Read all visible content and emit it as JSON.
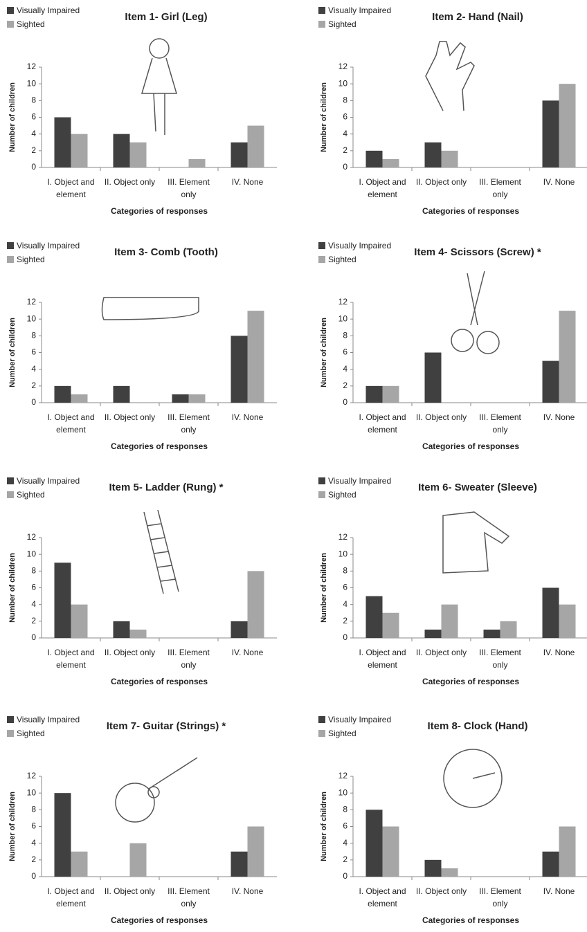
{
  "chart_data": [
    {
      "type": "bar",
      "title": "Item 1- Girl (Leg)",
      "xlabel": "Categories of responses",
      "ylabel": "Number of children",
      "categories": [
        "I. Object and element",
        "II. Object only",
        "III. Element only",
        "IV. None"
      ],
      "series": [
        {
          "name": "Visually Impaired",
          "color": "#404040",
          "values": [
            6,
            4,
            0,
            3
          ]
        },
        {
          "name": "Sighted",
          "color": "#a6a6a6",
          "values": [
            4,
            3,
            1,
            5
          ]
        }
      ],
      "ylim": [
        0,
        12
      ],
      "yticks": [
        0,
        2,
        4,
        6,
        8,
        10,
        12
      ]
    },
    {
      "type": "bar",
      "title": "Item 2- Hand (Nail)",
      "xlabel": "Categories of responses",
      "ylabel": "Number of children",
      "categories": [
        "I. Object and element",
        "II. Object only",
        "III. Element only",
        "IV. None"
      ],
      "series": [
        {
          "name": "Visually Impaired",
          "color": "#404040",
          "values": [
            2,
            3,
            0,
            8
          ]
        },
        {
          "name": "Sighted",
          "color": "#a6a6a6",
          "values": [
            1,
            2,
            0,
            10
          ]
        }
      ],
      "ylim": [
        0,
        12
      ],
      "yticks": [
        0,
        2,
        4,
        6,
        8,
        10,
        12
      ]
    },
    {
      "type": "bar",
      "title": "Item 3- Comb (Tooth)",
      "xlabel": "Categories of responses",
      "ylabel": "Number of children",
      "categories": [
        "I. Object and element",
        "II. Object only",
        "III. Element only",
        "IV. None"
      ],
      "series": [
        {
          "name": "Visually Impaired",
          "color": "#404040",
          "values": [
            2,
            2,
            1,
            8
          ]
        },
        {
          "name": "Sighted",
          "color": "#a6a6a6",
          "values": [
            1,
            0,
            1,
            11
          ]
        }
      ],
      "ylim": [
        0,
        12
      ],
      "yticks": [
        0,
        2,
        4,
        6,
        8,
        10,
        12
      ]
    },
    {
      "type": "bar",
      "title": "Item 4- Scissors (Screw) *",
      "xlabel": "Categories of responses",
      "ylabel": "Number of children",
      "categories": [
        "I. Object and element",
        "II. Object only",
        "III. Element only",
        "IV. None"
      ],
      "series": [
        {
          "name": "Visually Impaired",
          "color": "#404040",
          "values": [
            2,
            6,
            0,
            5
          ]
        },
        {
          "name": "Sighted",
          "color": "#a6a6a6",
          "values": [
            2,
            0,
            0,
            11
          ]
        }
      ],
      "ylim": [
        0,
        12
      ],
      "yticks": [
        0,
        2,
        4,
        6,
        8,
        10,
        12
      ]
    },
    {
      "type": "bar",
      "title": "Item 5- Ladder (Rung) *",
      "xlabel": "Categories of responses",
      "ylabel": "Number of children",
      "categories": [
        "I. Object and element",
        "II. Object only",
        "III. Element only",
        "IV. None"
      ],
      "series": [
        {
          "name": "Visually Impaired",
          "color": "#404040",
          "values": [
            9,
            2,
            0,
            2
          ]
        },
        {
          "name": "Sighted",
          "color": "#a6a6a6",
          "values": [
            4,
            1,
            0,
            8
          ]
        }
      ],
      "ylim": [
        0,
        12
      ],
      "yticks": [
        0,
        2,
        4,
        6,
        8,
        10,
        12
      ]
    },
    {
      "type": "bar",
      "title": "Item 6- Sweater (Sleeve)",
      "xlabel": "Categories of responses",
      "ylabel": "Number of children",
      "categories": [
        "I. Object and element",
        "II. Object only",
        "III. Element only",
        "IV. None"
      ],
      "series": [
        {
          "name": "Visually Impaired",
          "color": "#404040",
          "values": [
            5,
            1,
            1,
            6
          ]
        },
        {
          "name": "Sighted",
          "color": "#a6a6a6",
          "values": [
            3,
            4,
            2,
            4
          ]
        }
      ],
      "ylim": [
        0,
        12
      ],
      "yticks": [
        0,
        2,
        4,
        6,
        8,
        10,
        12
      ]
    },
    {
      "type": "bar",
      "title": "Item 7- Guitar (Strings) *",
      "xlabel": "Categories of responses",
      "ylabel": "Number of children",
      "categories": [
        "I. Object and element",
        "II. Object only",
        "III. Element only",
        "IV. None"
      ],
      "series": [
        {
          "name": "Visually Impaired",
          "color": "#404040",
          "values": [
            10,
            0,
            0,
            3
          ]
        },
        {
          "name": "Sighted",
          "color": "#a6a6a6",
          "values": [
            3,
            4,
            0,
            6
          ]
        }
      ],
      "ylim": [
        0,
        12
      ],
      "yticks": [
        0,
        2,
        4,
        6,
        8,
        10,
        12
      ]
    },
    {
      "type": "bar",
      "title": "Item 8- Clock (Hand)",
      "xlabel": "Categories of responses",
      "ylabel": "Number of children",
      "categories": [
        "I. Object and element",
        "II. Object only",
        "III. Element only",
        "IV. None"
      ],
      "series": [
        {
          "name": "Visually Impaired",
          "color": "#404040",
          "values": [
            8,
            2,
            0,
            3
          ]
        },
        {
          "name": "Sighted",
          "color": "#a6a6a6",
          "values": [
            6,
            1,
            0,
            6
          ]
        }
      ],
      "ylim": [
        0,
        12
      ],
      "yticks": [
        0,
        2,
        4,
        6,
        8,
        10,
        12
      ]
    }
  ]
}
